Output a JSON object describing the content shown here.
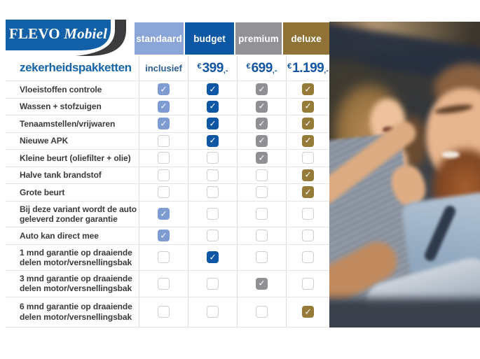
{
  "brand": {
    "main": "FLEVO",
    "accent": "Mobiel"
  },
  "icons": {
    "check": "✓"
  },
  "photo": {
    "description": "smiling man and woman inside a car"
  },
  "chart_data": {
    "type": "table",
    "title": "zekerheidspakketten",
    "legend_position": "top",
    "columns": [
      {
        "key": "standaard",
        "label": "standaard",
        "price_text": "inclusief",
        "header_color": "#8ca5d8",
        "check_color": "#7f9cd2"
      },
      {
        "key": "budget",
        "label": "budget",
        "price_currency": "€",
        "price_amount": "399",
        "price_suffix": ",-",
        "header_color": "#0d57a5",
        "check_color": "#0d57a5"
      },
      {
        "key": "premium",
        "label": "premium",
        "price_currency": "€",
        "price_amount": "699",
        "price_suffix": ",-",
        "header_color": "#929296",
        "check_color": "#8f9094"
      },
      {
        "key": "deluxe",
        "label": "deluxe",
        "price_currency": "€",
        "price_amount": "1.199",
        "price_suffix": ",-",
        "header_color": "#8f7336",
        "check_color": "#957a38"
      }
    ],
    "rows": [
      {
        "label": "Vloeistoffen controle",
        "checks": [
          true,
          true,
          true,
          true
        ]
      },
      {
        "label": "Wassen + stofzuigen",
        "checks": [
          true,
          true,
          true,
          true
        ]
      },
      {
        "label": "Tenaamstellen/vrijwaren",
        "checks": [
          true,
          true,
          true,
          true
        ]
      },
      {
        "label": "Nieuwe APK",
        "checks": [
          false,
          true,
          true,
          true
        ]
      },
      {
        "label": "Kleine beurt (oliefilter + olie)",
        "checks": [
          false,
          false,
          true,
          false
        ]
      },
      {
        "label": "Halve tank brandstof",
        "checks": [
          false,
          false,
          false,
          true
        ]
      },
      {
        "label": "Grote beurt",
        "checks": [
          false,
          false,
          false,
          true
        ]
      },
      {
        "label": "Bij deze variant wordt de auto geleverd zonder garantie",
        "checks": [
          true,
          false,
          false,
          false
        ],
        "wrap": true
      },
      {
        "label": "Auto kan direct mee",
        "checks": [
          true,
          false,
          false,
          false
        ]
      },
      {
        "label": "1 mnd garantie op draaiende delen motor/versnellingsbak",
        "checks": [
          false,
          true,
          false,
          false
        ],
        "wrap": true
      },
      {
        "label": "3 mnd garantie op draaiende delen motor/versnellingsbak",
        "checks": [
          false,
          false,
          true,
          false
        ],
        "wrap": true
      },
      {
        "label": "6 mnd garantie op draaiende delen motor/versnellingsbak",
        "checks": [
          false,
          false,
          false,
          true
        ],
        "wrap": true
      }
    ]
  }
}
